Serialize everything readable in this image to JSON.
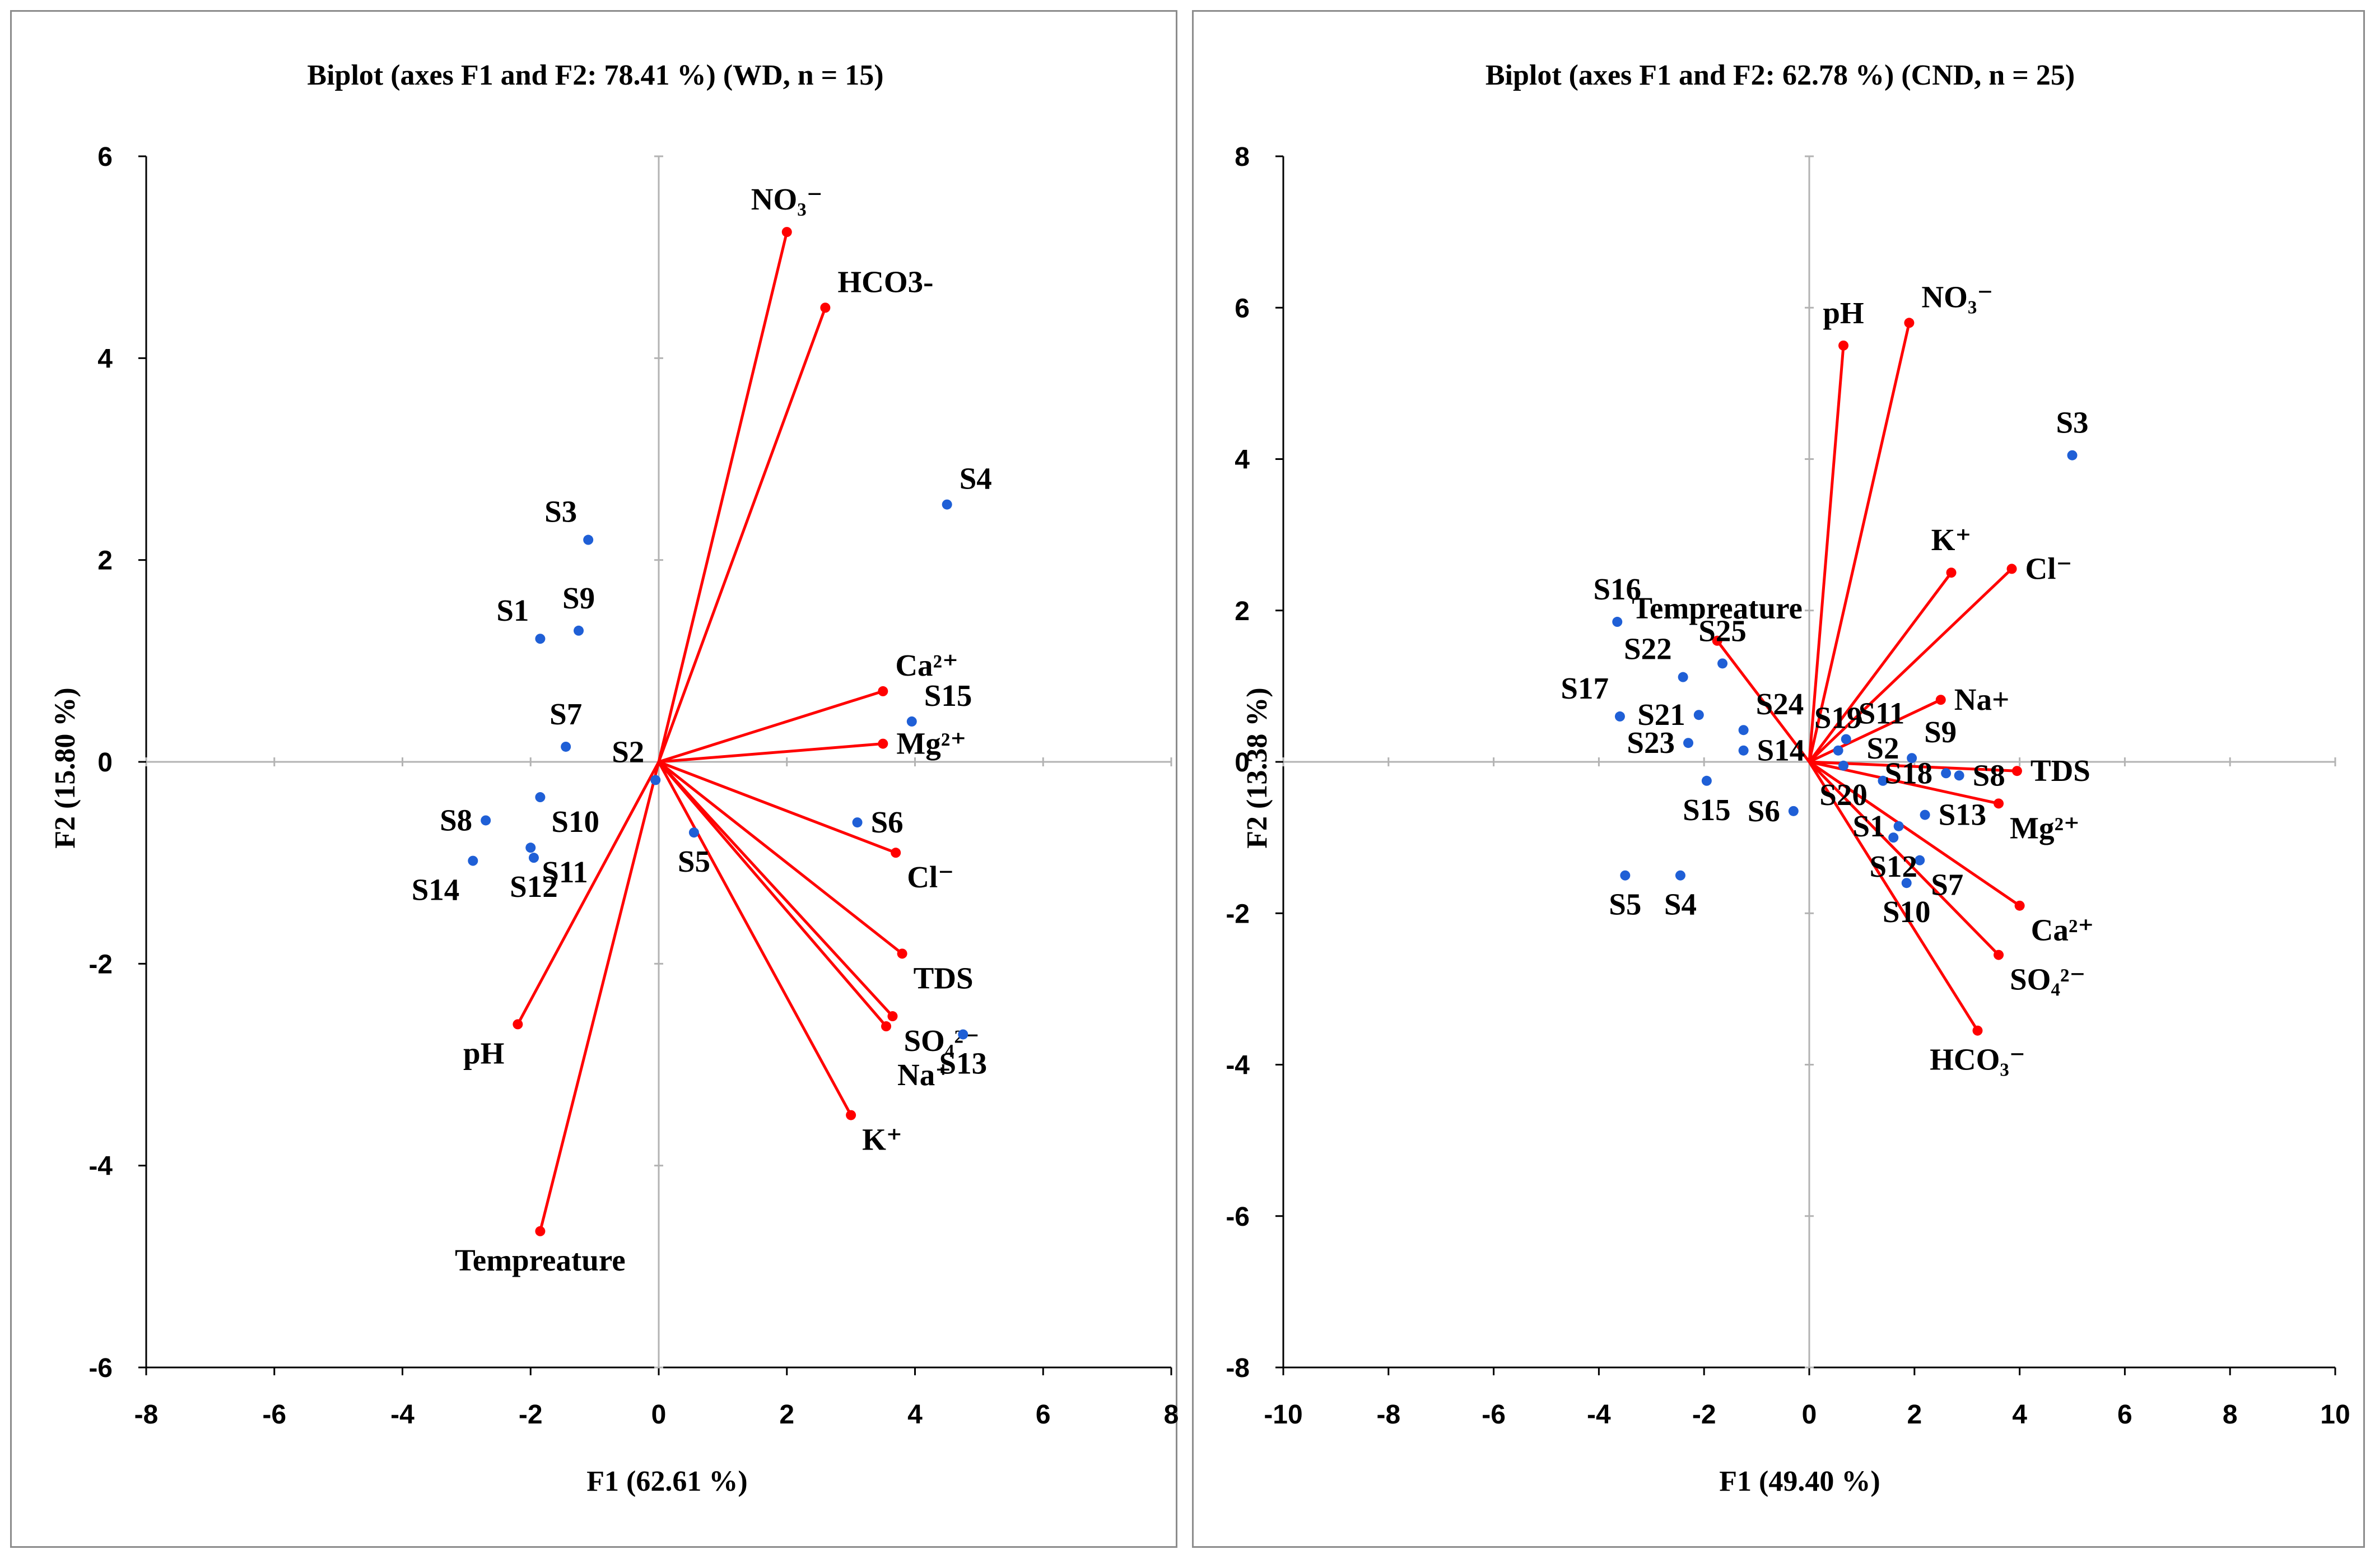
{
  "chart_data": [
    {
      "type": "scatter",
      "title": "Biplot (axes F1 and F2: 78.41 %) (WD, n = 15)",
      "xlabel": "F1 (62.61 %)",
      "ylabel": "F2 (15.80 %)",
      "xlim": [
        -8,
        8
      ],
      "ylim": [
        -6,
        6
      ],
      "xticks": [
        "-8",
        "-6",
        "-4",
        "-2",
        "0",
        "2",
        "4",
        "6",
        "8"
      ],
      "yticks": [
        "-6",
        "-4",
        "-2",
        "0",
        "2",
        "4",
        "6"
      ],
      "colors": {
        "variables": "#ff0000",
        "observations": "#1f5fd6"
      },
      "variables": [
        {
          "name": "NO₃⁻",
          "x": 2.0,
          "y": 5.25,
          "label_anchor": "top"
        },
        {
          "name": "HCO3-",
          "x": 2.6,
          "y": 4.5,
          "label_anchor": "top-right"
        },
        {
          "name": "Ca²⁺",
          "x": 3.5,
          "y": 0.7,
          "label_anchor": "top-right"
        },
        {
          "name": "Mg²⁺",
          "x": 3.5,
          "y": 0.18,
          "label_anchor": "right"
        },
        {
          "name": "Cl⁻",
          "x": 3.7,
          "y": -0.9,
          "label_anchor": "bottom-right"
        },
        {
          "name": "TDS",
          "x": 3.8,
          "y": -1.9,
          "label_anchor": "bottom-right"
        },
        {
          "name": "SO₄²⁻",
          "x": 3.65,
          "y": -2.52,
          "label_anchor": "bottom-right"
        },
        {
          "name": "Na⁺",
          "x": 3.55,
          "y": -2.62,
          "label_anchor": "bottom-right2"
        },
        {
          "name": "K⁺",
          "x": 3.0,
          "y": -3.5,
          "label_anchor": "bottom-right"
        },
        {
          "name": "pH",
          "x": -2.2,
          "y": -2.6,
          "label_anchor": "bottom-left"
        },
        {
          "name": "Tempreature",
          "x": -1.85,
          "y": -4.65,
          "label_anchor": "bottom"
        }
      ],
      "observations": [
        {
          "name": "S1",
          "x": -1.85,
          "y": 1.22,
          "label_anchor": "top-left"
        },
        {
          "name": "S2",
          "x": -0.05,
          "y": -0.18,
          "label_anchor": "top-left"
        },
        {
          "name": "S3",
          "x": -1.1,
          "y": 2.2,
          "label_anchor": "top-left"
        },
        {
          "name": "S4",
          "x": 4.5,
          "y": 2.55,
          "label_anchor": "top-right"
        },
        {
          "name": "S5",
          "x": 0.55,
          "y": -0.7,
          "label_anchor": "bottom"
        },
        {
          "name": "S6",
          "x": 3.1,
          "y": -0.6,
          "label_anchor": "right"
        },
        {
          "name": "S7",
          "x": -1.45,
          "y": 0.15,
          "label_anchor": "top"
        },
        {
          "name": "S8",
          "x": -2.7,
          "y": -0.58,
          "label_anchor": "left"
        },
        {
          "name": "S9",
          "x": -1.25,
          "y": 1.3,
          "label_anchor": "top"
        },
        {
          "name": "S10",
          "x": -1.85,
          "y": -0.35,
          "label_anchor": "bottom-right"
        },
        {
          "name": "S11",
          "x": -2.0,
          "y": -0.85,
          "label_anchor": "bottom-right"
        },
        {
          "name": "S12",
          "x": -1.95,
          "y": -0.95,
          "label_anchor": "bottom"
        },
        {
          "name": "S13",
          "x": 4.75,
          "y": -2.7,
          "label_anchor": "bottom"
        },
        {
          "name": "S14",
          "x": -2.9,
          "y": -0.98,
          "label_anchor": "bottom-left"
        },
        {
          "name": "S15",
          "x": 3.95,
          "y": 0.4,
          "label_anchor": "top-right"
        }
      ]
    },
    {
      "type": "scatter",
      "title": "Biplot (axes F1 and F2: 62.78 %) (CND, n = 25)",
      "xlabel": "F1 (49.40 %)",
      "ylabel": "F2 (13.38 %)",
      "xlim": [
        -10,
        10
      ],
      "ylim": [
        -8,
        8
      ],
      "xticks": [
        "-10",
        "-8",
        "-6",
        "-4",
        "-2",
        "0",
        "2",
        "4",
        "6",
        "8",
        "10"
      ],
      "yticks": [
        "-8",
        "-6",
        "-4",
        "-2",
        "0",
        "2",
        "4",
        "6",
        "8"
      ],
      "colors": {
        "variables": "#ff0000",
        "observations": "#1f5fd6"
      },
      "variables": [
        {
          "name": "pH",
          "x": 0.65,
          "y": 5.5,
          "label_anchor": "top"
        },
        {
          "name": "NO₃⁻",
          "x": 1.9,
          "y": 5.8,
          "label_anchor": "top-right"
        },
        {
          "name": "K⁺",
          "x": 2.7,
          "y": 2.5,
          "label_anchor": "top"
        },
        {
          "name": "Cl⁻",
          "x": 3.85,
          "y": 2.55,
          "label_anchor": "right"
        },
        {
          "name": "Na+",
          "x": 2.5,
          "y": 0.82,
          "label_anchor": "right"
        },
        {
          "name": "TDS",
          "x": 3.95,
          "y": -0.12,
          "label_anchor": "right"
        },
        {
          "name": "Mg²⁺",
          "x": 3.6,
          "y": -0.55,
          "label_anchor": "bottom-right"
        },
        {
          "name": "Ca²⁺",
          "x": 4.0,
          "y": -1.9,
          "label_anchor": "bottom-right"
        },
        {
          "name": "SO₄²⁻",
          "x": 3.6,
          "y": -2.55,
          "label_anchor": "bottom-right"
        },
        {
          "name": "HCO₃⁻",
          "x": 3.2,
          "y": -3.55,
          "label_anchor": "bottom"
        },
        {
          "name": "Tempreature",
          "x": -1.75,
          "y": 1.6,
          "label_anchor": "top"
        }
      ],
      "observations": [
        {
          "name": "S1",
          "x": 1.7,
          "y": -0.85,
          "label_anchor": "left"
        },
        {
          "name": "S2",
          "x": 1.4,
          "y": -0.25,
          "label_anchor": "top"
        },
        {
          "name": "S3",
          "x": 5.0,
          "y": 4.05,
          "label_anchor": "top"
        },
        {
          "name": "S4",
          "x": -2.45,
          "y": -1.5,
          "label_anchor": "bottom"
        },
        {
          "name": "S5",
          "x": -3.5,
          "y": -1.5,
          "label_anchor": "bottom"
        },
        {
          "name": "S6",
          "x": -0.3,
          "y": -0.65,
          "label_anchor": "left"
        },
        {
          "name": "S7",
          "x": 2.1,
          "y": -1.3,
          "label_anchor": "bottom-right"
        },
        {
          "name": "S8",
          "x": 2.85,
          "y": -0.18,
          "label_anchor": "right"
        },
        {
          "name": "S9",
          "x": 1.95,
          "y": 0.05,
          "label_anchor": "top-right"
        },
        {
          "name": "S10",
          "x": 1.85,
          "y": -1.6,
          "label_anchor": "bottom"
        },
        {
          "name": "S11",
          "x": 0.7,
          "y": 0.3,
          "label_anchor": "top-right"
        },
        {
          "name": "S12",
          "x": 1.6,
          "y": -1.0,
          "label_anchor": "bottom"
        },
        {
          "name": "S13",
          "x": 2.2,
          "y": -0.7,
          "label_anchor": "right"
        },
        {
          "name": "S14",
          "x": -1.25,
          "y": 0.15,
          "label_anchor": "right"
        },
        {
          "name": "S15",
          "x": -1.95,
          "y": -0.25,
          "label_anchor": "bottom"
        },
        {
          "name": "S16",
          "x": -3.65,
          "y": 1.85,
          "label_anchor": "top"
        },
        {
          "name": "S17",
          "x": -3.6,
          "y": 0.6,
          "label_anchor": "top-left"
        },
        {
          "name": "S18",
          "x": 2.6,
          "y": -0.15,
          "label_anchor": "left"
        },
        {
          "name": "S19",
          "x": 0.55,
          "y": 0.15,
          "label_anchor": "top"
        },
        {
          "name": "S20",
          "x": 0.65,
          "y": -0.05,
          "label_anchor": "bottom"
        },
        {
          "name": "S21",
          "x": -2.1,
          "y": 0.62,
          "label_anchor": "left"
        },
        {
          "name": "S22",
          "x": -2.4,
          "y": 1.12,
          "label_anchor": "top-left"
        },
        {
          "name": "S23",
          "x": -2.3,
          "y": 0.25,
          "label_anchor": "left"
        },
        {
          "name": "S24",
          "x": -1.25,
          "y": 0.42,
          "label_anchor": "top-right"
        },
        {
          "name": "S25",
          "x": -1.65,
          "y": 1.3,
          "label_anchor": "top"
        }
      ]
    }
  ]
}
